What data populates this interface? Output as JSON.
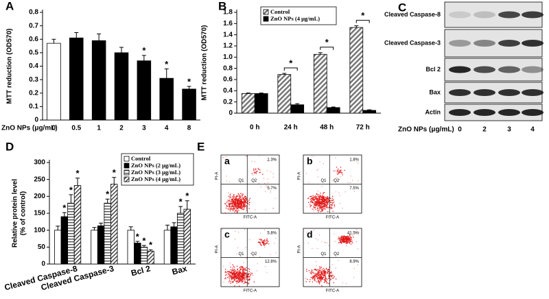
{
  "chart_data": [
    {
      "type": "bar",
      "panel_label": "A",
      "y_label": "MTT reduction (OD570)",
      "x_label": "ZnO NPs (μg/mL)",
      "categories": [
        "0",
        "0.5",
        "1",
        "2",
        "3",
        "4",
        "8"
      ],
      "values": [
        0.57,
        0.61,
        0.59,
        0.5,
        0.44,
        0.31,
        0.23
      ],
      "errors": [
        0.03,
        0.04,
        0.05,
        0.04,
        0.04,
        0.07,
        0.02
      ],
      "colors": [
        "#ffffff",
        "#000000",
        "#000000",
        "#000000",
        "#000000",
        "#000000",
        "#000000"
      ],
      "significance": [
        null,
        null,
        null,
        null,
        "*",
        "*",
        "*"
      ],
      "ylim": [
        0,
        0.8
      ],
      "yticks": [
        0,
        0.1,
        0.2,
        0.3,
        0.4,
        0.5,
        0.6,
        0.7,
        0.8
      ]
    },
    {
      "type": "bar",
      "panel_label": "B",
      "y_label": "MTT reduction (OD570)",
      "categories": [
        "0 h",
        "24 h",
        "48 h",
        "72 h"
      ],
      "series": [
        {
          "name": "Control",
          "color": "#ffffff",
          "pattern": "diag",
          "values": [
            0.35,
            0.69,
            1.05,
            1.53
          ],
          "errors": [
            0.01,
            0.02,
            0.03,
            0.03
          ]
        },
        {
          "name": "ZnO NPs (4 μg/mL)",
          "color": "#000000",
          "values": [
            0.35,
            0.15,
            0.1,
            0.05
          ],
          "errors": [
            0.01,
            0.02,
            0.01,
            0.01
          ]
        }
      ],
      "significance": [
        null,
        "*",
        "*",
        "*"
      ],
      "ylim": [
        0,
        1.8
      ],
      "yticks": [
        0,
        0.2,
        0.4,
        0.6,
        0.8,
        {
          "value": 1,
          "label": "1.0"
        },
        1.2,
        1.4,
        1.6,
        1.8
      ]
    },
    {
      "type": "bar",
      "panel_label": "D",
      "y_label": [
        "Relative protein level",
        "(% of control)"
      ],
      "categories": [
        "Cleaved Caspase-8",
        "Cleaved Caspase-3",
        "Bcl 2",
        "Bax"
      ],
      "series": [
        {
          "name": "Control",
          "color": "#ffffff",
          "values": [
            100,
            100,
            100,
            100
          ],
          "errors": [
            12,
            8,
            10,
            15
          ],
          "significance": [
            null,
            null,
            null,
            null
          ]
        },
        {
          "name": "ZnO NPs (2 μg/mL)",
          "color": "#000000",
          "values": [
            140,
            113,
            62,
            110
          ],
          "errors": [
            12,
            8,
            5,
            12
          ],
          "significance": [
            "*",
            null,
            "*",
            null
          ]
        },
        {
          "name": "ZnO NPs (3 μg/mL)",
          "color": "#ffffff",
          "pattern": "horiz",
          "values": [
            180,
            180,
            50,
            150
          ],
          "errors": [
            25,
            12,
            5,
            20
          ],
          "significance": [
            "*",
            "*",
            "*",
            "*"
          ]
        },
        {
          "name": "ZnO NPs (4 μg/mL)",
          "color": "#ffffff",
          "pattern": "hatch",
          "values": [
            232,
            236,
            38,
            162
          ],
          "errors": [
            22,
            20,
            4,
            25
          ],
          "significance": [
            "*",
            "*",
            "*",
            "*"
          ]
        }
      ],
      "ylim": [
        0,
        300
      ],
      "yticks": [
        0,
        50,
        100,
        150,
        200,
        250,
        300
      ]
    }
  ],
  "blot": {
    "panel_label": "C",
    "rows": [
      "Cleaved Caspase-8",
      "Cleaved Caspase-3",
      "Bcl 2",
      "Bax",
      "Actin"
    ],
    "x_label": "ZnO NPs (μg/mL)",
    "lanes": [
      "0",
      "2",
      "3",
      "4"
    ]
  },
  "flow": {
    "panel_label": "E",
    "x_label": "FITC-A",
    "y_label": "PI-A",
    "quadrants": [
      "Q1",
      "Q2"
    ],
    "plots": [
      {
        "label": "a",
        "upper_right": "1.3%",
        "lower_right": "5.7%"
      },
      {
        "label": "b",
        "upper_right": "1.8%",
        "lower_right": "7.5%"
      },
      {
        "label": "c",
        "upper_right": "5.8%",
        "lower_right": "12.8%"
      },
      {
        "label": "d",
        "upper_right": "41.5%",
        "lower_right": "8.9%"
      }
    ]
  }
}
